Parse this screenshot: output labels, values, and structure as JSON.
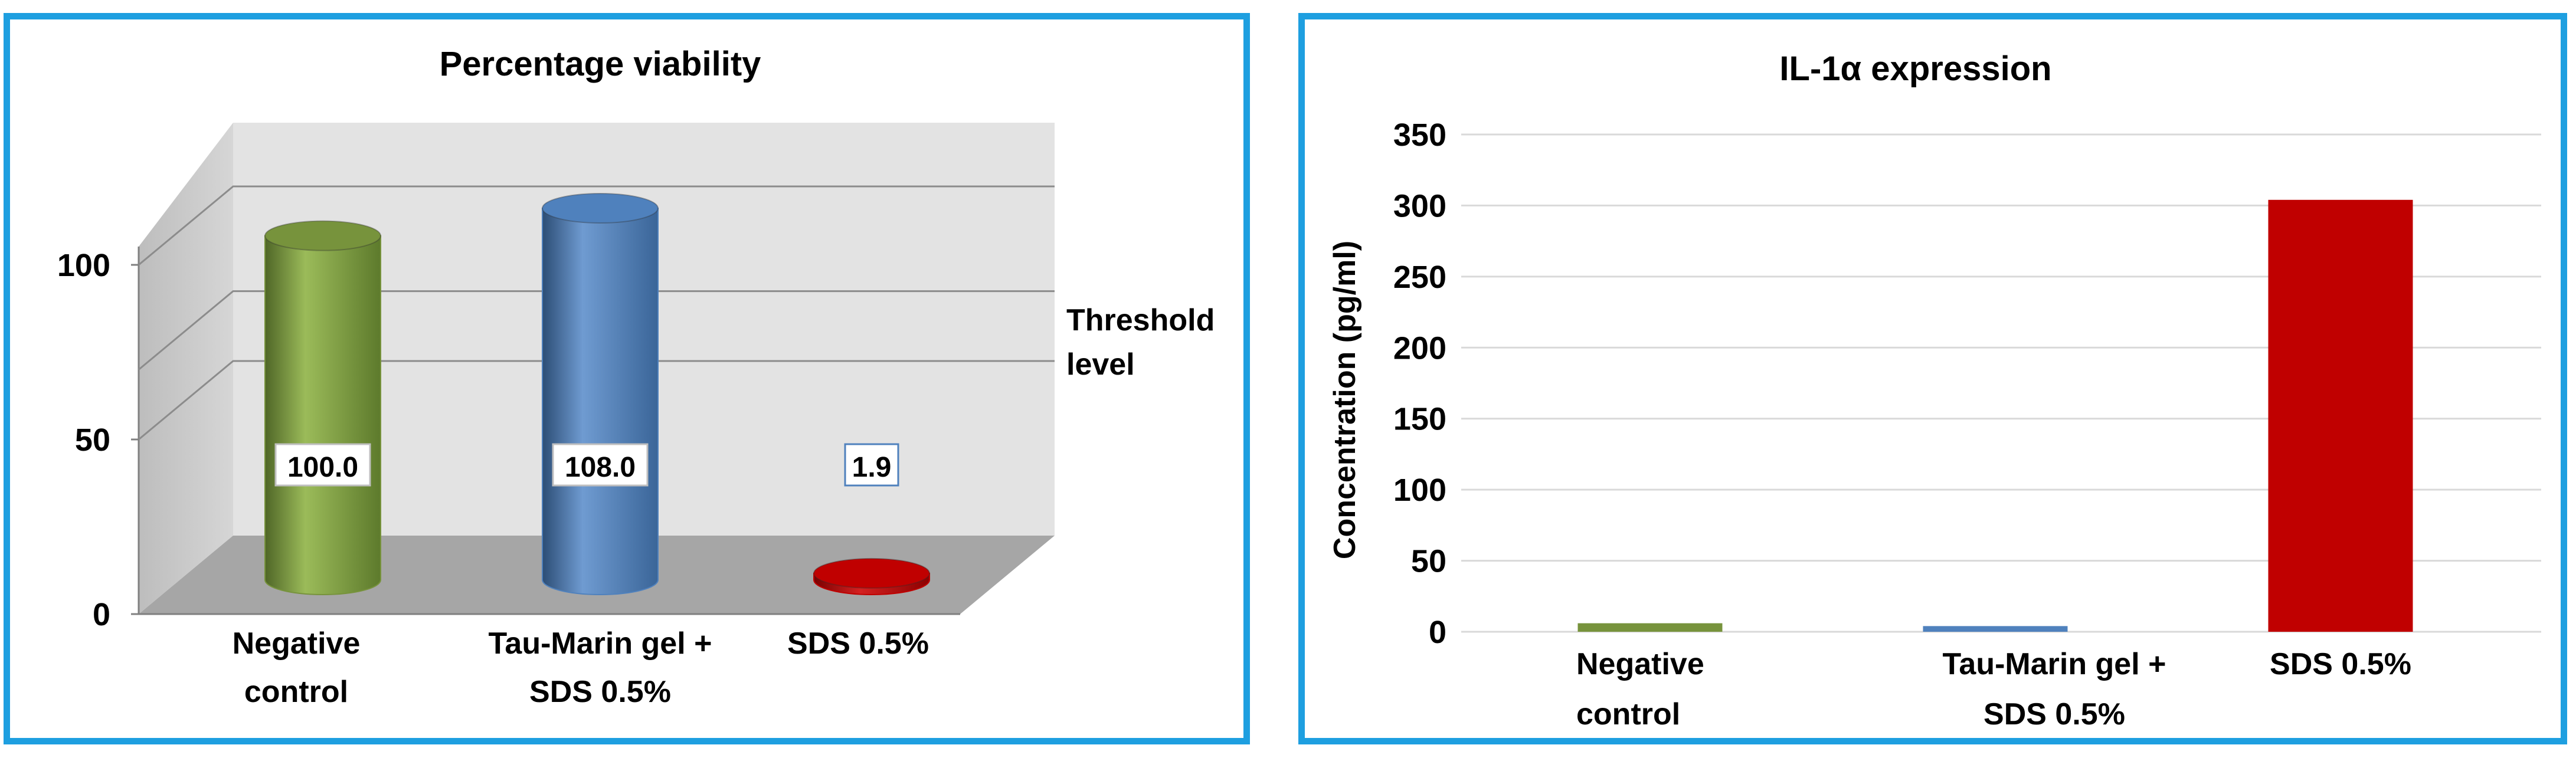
{
  "colors": {
    "green": "#77933c",
    "blue": "#4f81bd",
    "red": "#c00000",
    "frame_border": "#1e9fe0"
  },
  "chart_data": [
    {
      "type": "bar",
      "style": "3d-cylinder",
      "title": "Percentage viability",
      "categories": [
        "Negative control",
        "Tau-Marin gel + SDS 0.5%",
        "SDS 0.5%"
      ],
      "category_lines": [
        [
          "Negative",
          "control"
        ],
        [
          "Tau-Marin gel +",
          "SDS 0.5%"
        ],
        [
          "SDS 0.5%"
        ]
      ],
      "values": [
        100.0,
        108.0,
        1.9
      ],
      "data_labels": [
        "100.0",
        "108.0",
        "1.9"
      ],
      "bar_colors": [
        "#77933c",
        "#4f81bd",
        "#c00000"
      ],
      "ylim": [
        0,
        120
      ],
      "yticks": [
        0,
        50,
        100
      ],
      "ytick_labels": [
        "0",
        "50",
        "100"
      ],
      "reference_line": {
        "value": 70,
        "label_lines": [
          "Threshold",
          "level"
        ]
      },
      "grid": true,
      "legend": "none"
    },
    {
      "type": "bar",
      "title": "IL-1α expression",
      "ylabel": "Concentration (pg/ml)",
      "categories": [
        "Negative control",
        "Tau-Marin gel + SDS 0.5%",
        "SDS 0.5%"
      ],
      "category_lines": [
        [
          "Negative",
          "control"
        ],
        [
          "Tau-Marin gel +",
          "SDS 0.5%"
        ],
        [
          "SDS 0.5%"
        ]
      ],
      "values": [
        6,
        4,
        304
      ],
      "bar_colors": [
        "#77933c",
        "#4f81bd",
        "#c00000"
      ],
      "ylim": [
        0,
        350
      ],
      "yticks": [
        0,
        50,
        100,
        150,
        200,
        250,
        300,
        350
      ],
      "grid": true,
      "legend": "none"
    }
  ]
}
